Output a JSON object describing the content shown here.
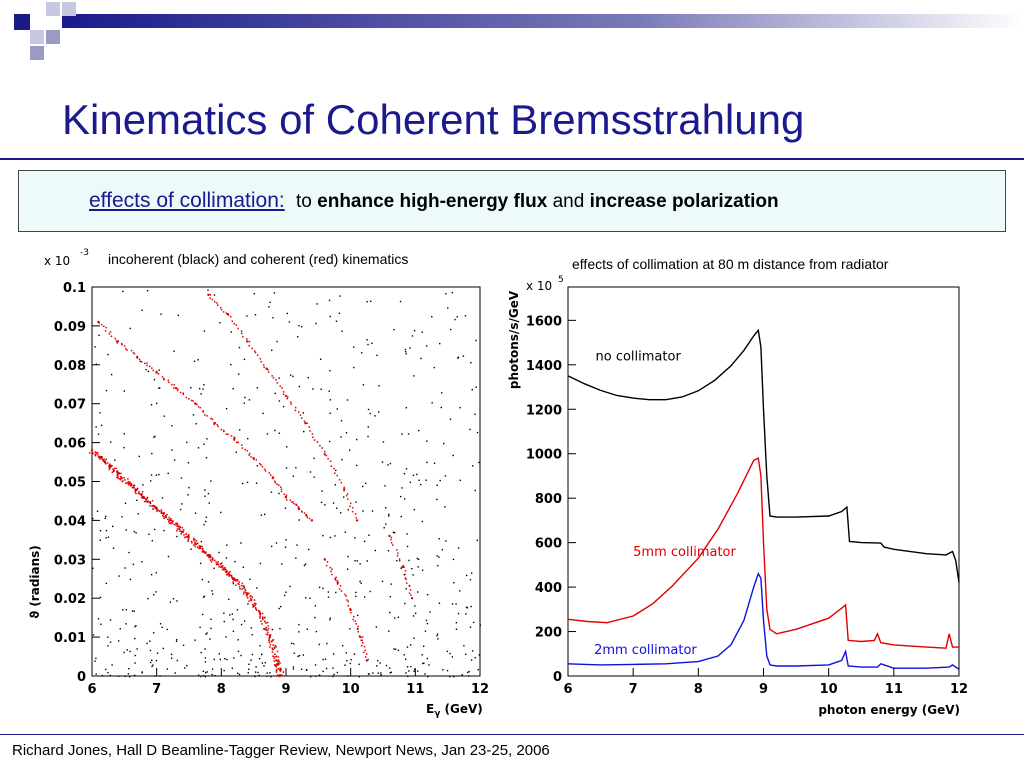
{
  "slide": {
    "title": "Kinematics of Coherent Bremsstrahlung",
    "banner": {
      "effects": "effects of collimation:",
      "to": "to",
      "enhance": "enhance high-energy flux",
      "and": "and",
      "increase": "increase polarization"
    },
    "footer": "Richard Jones, Hall D Beamline-Tagger Review, Newport News, Jan 23-25, 2006",
    "colors": {
      "title": "#1a1a8c",
      "banner_bg": "#eefafa",
      "coherent": "#e00000",
      "incoherent": "#000000",
      "two_mm": "#1010e0"
    }
  },
  "chart_data": [
    {
      "type": "scatter",
      "caption": "incoherent (black) and coherent (red) kinematics",
      "scale_label": "x 10",
      "scale_exp": "-3",
      "xlabel": "E",
      "xlabel_sub": "γ",
      "xlabel_unit": " (GeV)",
      "ylabel": "ϑ  (radians)",
      "xlim": [
        6,
        12
      ],
      "ylim": [
        0,
        0.1
      ],
      "xticks": [
        "6",
        "7",
        "8",
        "9",
        "10",
        "11",
        "12"
      ],
      "yticks": [
        "0",
        "0.01",
        "0.02",
        "0.03",
        "0.04",
        "0.05",
        "0.06",
        "0.07",
        "0.08",
        "0.09",
        "0.1"
      ],
      "grid": false,
      "series": [
        {
          "color": "#e00000",
          "points": [
            [
              6.0,
              0.058
            ],
            [
              6.2,
              0.055
            ],
            [
              6.4,
              0.052
            ],
            [
              6.6,
              0.049
            ],
            [
              6.8,
              0.046
            ],
            [
              7.0,
              0.043
            ],
            [
              7.2,
              0.04
            ],
            [
              7.4,
              0.037
            ],
            [
              7.6,
              0.034
            ],
            [
              7.8,
              0.031
            ],
            [
              8.0,
              0.028
            ],
            [
              8.2,
              0.025
            ],
            [
              8.4,
              0.021
            ],
            [
              8.6,
              0.016
            ],
            [
              8.75,
              0.01
            ],
            [
              8.85,
              0.004
            ],
            [
              8.9,
              0.0
            ]
          ]
        },
        {
          "color": "#e00000",
          "points": [
            [
              6.1,
              0.091
            ],
            [
              6.4,
              0.086
            ],
            [
              6.7,
              0.082
            ],
            [
              7.0,
              0.078
            ],
            [
              7.3,
              0.074
            ],
            [
              7.6,
              0.07
            ],
            [
              7.9,
              0.065
            ],
            [
              8.2,
              0.061
            ],
            [
              8.5,
              0.056
            ],
            [
              8.8,
              0.051
            ],
            [
              9.0,
              0.046
            ],
            [
              9.2,
              0.043
            ],
            [
              9.4,
              0.04
            ]
          ]
        },
        {
          "color": "#e00000",
          "points": [
            [
              7.8,
              0.098
            ],
            [
              8.1,
              0.093
            ],
            [
              8.4,
              0.086
            ],
            [
              8.7,
              0.079
            ],
            [
              9.0,
              0.072
            ],
            [
              9.3,
              0.065
            ],
            [
              9.6,
              0.057
            ],
            [
              9.9,
              0.048
            ],
            [
              10.1,
              0.04
            ]
          ]
        },
        {
          "color": "#e00000",
          "points": [
            [
              9.6,
              0.03
            ],
            [
              9.8,
              0.024
            ],
            [
              10.0,
              0.017
            ],
            [
              10.15,
              0.01
            ],
            [
              10.25,
              0.004
            ]
          ]
        },
        {
          "color": "#e00000",
          "points": [
            [
              10.6,
              0.036
            ],
            [
              10.8,
              0.028
            ],
            [
              10.95,
              0.02
            ]
          ]
        }
      ]
    },
    {
      "type": "line",
      "caption": "effects of collimation at 80 m distance from radiator",
      "scale_label": "x 10",
      "scale_exp": "5",
      "xlabel": "photon energy (GeV)",
      "ylabel": "photons/s/GeV",
      "xlim": [
        6,
        12
      ],
      "ylim": [
        0,
        1750
      ],
      "xticks": [
        "6",
        "7",
        "8",
        "9",
        "10",
        "11",
        "12"
      ],
      "yticks": [
        "0",
        "200",
        "400",
        "600",
        "800",
        "1000",
        "1200",
        "1400",
        "1600"
      ],
      "grid": false,
      "series": [
        {
          "name": "no collimator",
          "color": "#000000",
          "x": [
            6.0,
            6.25,
            6.5,
            6.75,
            7.0,
            7.25,
            7.5,
            7.75,
            8.0,
            8.25,
            8.5,
            8.7,
            8.85,
            8.92,
            8.96,
            9.0,
            9.05,
            9.1,
            9.2,
            9.5,
            10.0,
            10.2,
            10.28,
            10.32,
            10.5,
            10.8,
            10.85,
            11.0,
            11.5,
            11.8,
            11.9,
            11.95,
            12.0
          ],
          "values": [
            1350,
            1315,
            1285,
            1262,
            1250,
            1243,
            1243,
            1255,
            1283,
            1330,
            1395,
            1465,
            1530,
            1555,
            1480,
            1200,
            900,
            720,
            715,
            715,
            720,
            740,
            760,
            605,
            600,
            598,
            580,
            570,
            550,
            545,
            560,
            520,
            420
          ]
        },
        {
          "name": "5mm collimator",
          "color": "#e00000",
          "x": [
            6.0,
            6.3,
            6.6,
            7.0,
            7.3,
            7.6,
            8.0,
            8.3,
            8.6,
            8.85,
            8.92,
            8.96,
            9.0,
            9.05,
            9.1,
            9.2,
            9.5,
            10.0,
            10.2,
            10.26,
            10.3,
            10.5,
            10.7,
            10.75,
            10.8,
            11.0,
            11.5,
            11.8,
            11.85,
            11.9,
            12.0
          ],
          "values": [
            255,
            245,
            240,
            270,
            325,
            405,
            530,
            660,
            820,
            970,
            980,
            900,
            600,
            300,
            210,
            190,
            210,
            260,
            305,
            320,
            160,
            155,
            160,
            190,
            150,
            140,
            130,
            125,
            190,
            130,
            130
          ]
        },
        {
          "name": "2mm collimator",
          "color": "#1010e0",
          "x": [
            6.0,
            6.5,
            7.0,
            7.5,
            8.0,
            8.3,
            8.5,
            8.7,
            8.85,
            8.92,
            8.96,
            9.0,
            9.05,
            9.1,
            9.2,
            9.5,
            10.0,
            10.2,
            10.26,
            10.3,
            10.5,
            10.75,
            10.8,
            11.0,
            11.5,
            11.85,
            11.9,
            12.0
          ],
          "values": [
            55,
            50,
            52,
            55,
            65,
            90,
            140,
            250,
            400,
            460,
            440,
            250,
            90,
            50,
            45,
            45,
            50,
            70,
            110,
            45,
            40,
            40,
            55,
            35,
            35,
            40,
            50,
            30
          ]
        }
      ]
    }
  ]
}
